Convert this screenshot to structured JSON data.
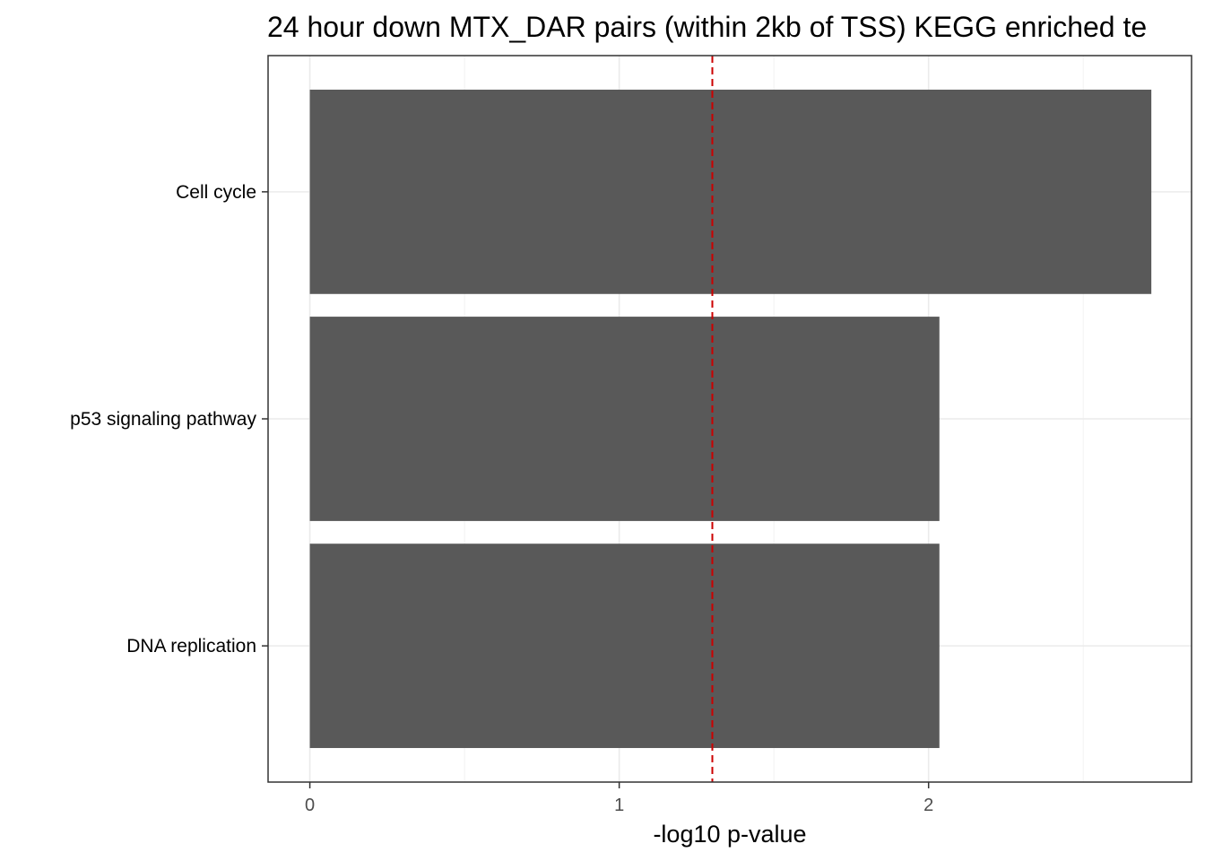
{
  "chart_data": {
    "type": "bar",
    "orientation": "horizontal",
    "title": "24 hour down MTX_DAR pairs (within 2kb of TSS) KEGG enriched te",
    "xlabel": "-log10 p-value",
    "ylabel": "",
    "categories": [
      "Cell cycle",
      "p53 signaling pathway",
      "DNA replication"
    ],
    "values": [
      2.72,
      2.035,
      2.035
    ],
    "xlim": [
      -0.135,
      2.85
    ],
    "xticks": [
      "0",
      "1",
      "2"
    ],
    "reference_line": {
      "x": 1.301,
      "style": "dashed",
      "color": "#cc0000"
    },
    "bar_color": "#595959",
    "grid": true,
    "legend": "none"
  }
}
